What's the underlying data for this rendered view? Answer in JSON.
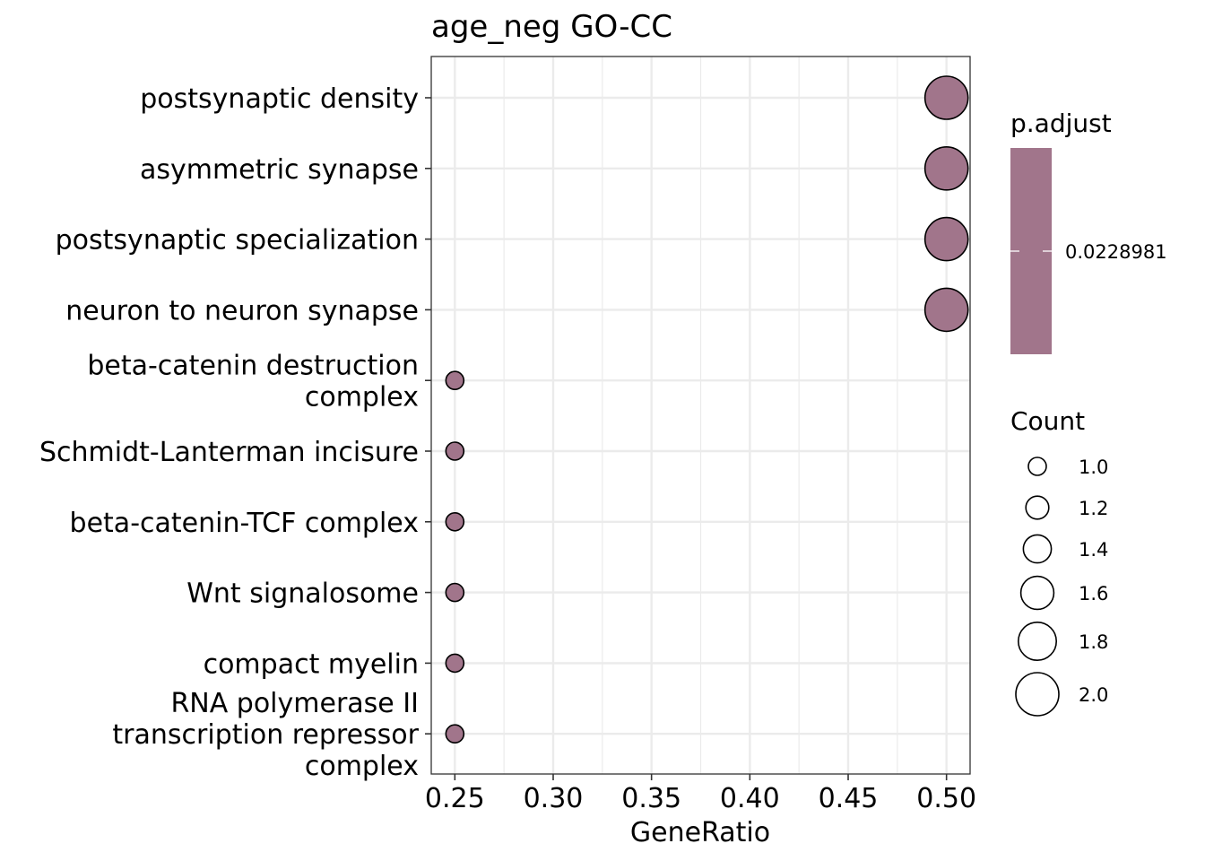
{
  "chart_data": {
    "type": "scatter",
    "title": "age_neg GO-CC",
    "xlabel": "GeneRatio",
    "ylabel": "",
    "xlim": [
      0.238,
      0.512
    ],
    "x_ticks": [
      "0.25",
      "0.30",
      "0.35",
      "0.40",
      "0.45",
      "0.50"
    ],
    "x_tick_values": [
      0.25,
      0.3,
      0.35,
      0.4,
      0.45,
      0.5
    ],
    "grid": true,
    "categories": [
      "postsynaptic density",
      "asymmetric synapse",
      "postsynaptic specialization",
      "neuron to neuron synapse",
      "beta-catenin destruction\ncomplex",
      "Schmidt-Lanterman incisure",
      "beta-catenin-TCF complex",
      "Wnt signalosome",
      "compact myelin",
      "RNA polymerase II\ntranscription repressor\ncomplex"
    ],
    "points": [
      {
        "term": "postsynaptic density",
        "gene_ratio": 0.5,
        "count": 2,
        "p_adjust": 0.0228981
      },
      {
        "term": "asymmetric synapse",
        "gene_ratio": 0.5,
        "count": 2,
        "p_adjust": 0.0228981
      },
      {
        "term": "postsynaptic specialization",
        "gene_ratio": 0.5,
        "count": 2,
        "p_adjust": 0.0228981
      },
      {
        "term": "neuron to neuron synapse",
        "gene_ratio": 0.5,
        "count": 2,
        "p_adjust": 0.0228981
      },
      {
        "term": "beta-catenin destruction complex",
        "gene_ratio": 0.25,
        "count": 1,
        "p_adjust": 0.0228981
      },
      {
        "term": "Schmidt-Lanterman incisure",
        "gene_ratio": 0.25,
        "count": 1,
        "p_adjust": 0.0228981
      },
      {
        "term": "beta-catenin-TCF complex",
        "gene_ratio": 0.25,
        "count": 1,
        "p_adjust": 0.0228981
      },
      {
        "term": "Wnt signalosome",
        "gene_ratio": 0.25,
        "count": 1,
        "p_adjust": 0.0228981
      },
      {
        "term": "compact myelin",
        "gene_ratio": 0.25,
        "count": 1,
        "p_adjust": 0.0228981
      },
      {
        "term": "RNA polymerase II transcription repressor complex",
        "gene_ratio": 0.25,
        "count": 1,
        "p_adjust": 0.0228981
      }
    ],
    "color_legend": {
      "title": "p.adjust",
      "labels": [
        "0.0228981"
      ],
      "color": "#a1758b"
    },
    "size_legend": {
      "title": "Count",
      "labels": [
        "1.0",
        "1.2",
        "1.4",
        "1.6",
        "1.8",
        "2.0"
      ],
      "values": [
        1.0,
        1.2,
        1.4,
        1.6,
        1.8,
        2.0
      ]
    },
    "colors": {
      "point_fill": "#a1758b",
      "point_stroke": "#000000",
      "grid": "#ebebeb",
      "panel_border": "#333333"
    }
  }
}
